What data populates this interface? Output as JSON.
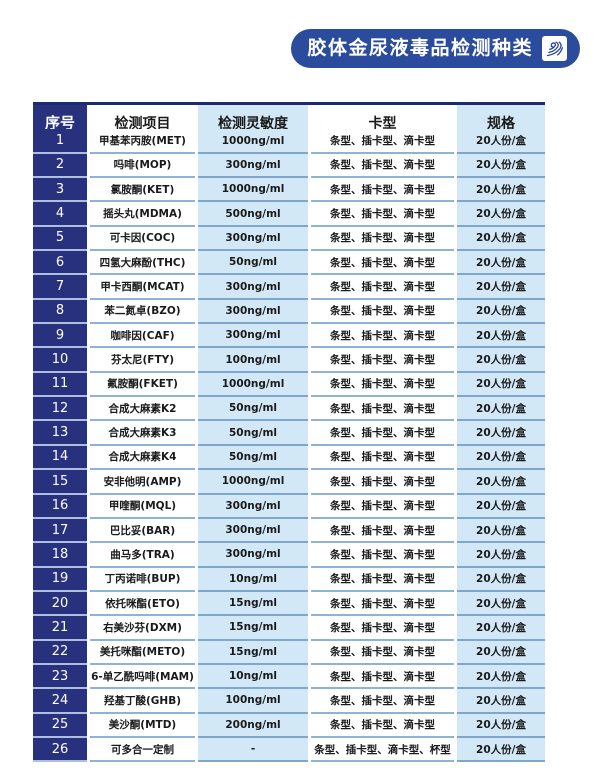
{
  "banner": {
    "title": "胶体金尿液毒品检测种类",
    "icon": "fingerprint-icon"
  },
  "colors": {
    "banner_blue": "#2b4b9d",
    "index_navy": "#27317e",
    "cell_blue": "#d3e8f7",
    "divider": "#8fb3d3",
    "top_border": "#1b2a75"
  },
  "table": {
    "columns": [
      "序号",
      "检测项目",
      "检测灵敏度",
      "卡型",
      "规格"
    ],
    "rows": [
      {
        "no": "1",
        "item": "甲基苯丙胺(MET)",
        "sensitivity": "1000ng/ml",
        "card": "条型、插卡型、滴卡型",
        "spec": "20人份/盒"
      },
      {
        "no": "2",
        "item": "吗啡(MOP)",
        "sensitivity": "300ng/ml",
        "card": "条型、插卡型、滴卡型",
        "spec": "20人份/盒"
      },
      {
        "no": "3",
        "item": "氯胺酮(KET)",
        "sensitivity": "1000ng/ml",
        "card": "条型、插卡型、滴卡型",
        "spec": "20人份/盒"
      },
      {
        "no": "4",
        "item": "摇头丸(MDMA)",
        "sensitivity": "500ng/ml",
        "card": "条型、插卡型、滴卡型",
        "spec": "20人份/盒"
      },
      {
        "no": "5",
        "item": "可卡因(COC)",
        "sensitivity": "300ng/ml",
        "card": "条型、插卡型、滴卡型",
        "spec": "20人份/盒"
      },
      {
        "no": "6",
        "item": "四氢大麻酚(THC)",
        "sensitivity": "50ng/ml",
        "card": "条型、插卡型、滴卡型",
        "spec": "20人份/盒"
      },
      {
        "no": "7",
        "item": "甲卡西酮(MCAT)",
        "sensitivity": "300ng/ml",
        "card": "条型、插卡型、滴卡型",
        "spec": "20人份/盒"
      },
      {
        "no": "8",
        "item": "苯二氮卓(BZO)",
        "sensitivity": "300ng/ml",
        "card": "条型、插卡型、滴卡型",
        "spec": "20人份/盒"
      },
      {
        "no": "9",
        "item": "咖啡因(CAF)",
        "sensitivity": "300ng/ml",
        "card": "条型、插卡型、滴卡型",
        "spec": "20人份/盒"
      },
      {
        "no": "10",
        "item": "芬太尼(FTY)",
        "sensitivity": "100ng/ml",
        "card": "条型、插卡型、滴卡型",
        "spec": "20人份/盒"
      },
      {
        "no": "11",
        "item": "氟胺酮(FKET)",
        "sensitivity": "1000ng/ml",
        "card": "条型、插卡型、滴卡型",
        "spec": "20人份/盒"
      },
      {
        "no": "12",
        "item": "合成大麻素K2",
        "sensitivity": "50ng/ml",
        "card": "条型、插卡型、滴卡型",
        "spec": "20人份/盒"
      },
      {
        "no": "13",
        "item": "合成大麻素K3",
        "sensitivity": "50ng/ml",
        "card": "条型、插卡型、滴卡型",
        "spec": "20人份/盒"
      },
      {
        "no": "14",
        "item": "合成大麻素K4",
        "sensitivity": "50ng/ml",
        "card": "条型、插卡型、滴卡型",
        "spec": "20人份/盒"
      },
      {
        "no": "15",
        "item": "安非他明(AMP)",
        "sensitivity": "1000ng/ml",
        "card": "条型、插卡型、滴卡型",
        "spec": "20人份/盒"
      },
      {
        "no": "16",
        "item": "甲喹酮(MQL)",
        "sensitivity": "300ng/ml",
        "card": "条型、插卡型、滴卡型",
        "spec": "20人份/盒"
      },
      {
        "no": "17",
        "item": "巴比妥(BAR)",
        "sensitivity": "300ng/ml",
        "card": "条型、插卡型、滴卡型",
        "spec": "20人份/盒"
      },
      {
        "no": "18",
        "item": "曲马多(TRA)",
        "sensitivity": "300ng/ml",
        "card": "条型、插卡型、滴卡型",
        "spec": "20人份/盒"
      },
      {
        "no": "19",
        "item": "丁丙诺啡(BUP)",
        "sensitivity": "10ng/ml",
        "card": "条型、插卡型、滴卡型",
        "spec": "20人份/盒"
      },
      {
        "no": "20",
        "item": "依托咪酯(ETO)",
        "sensitivity": "15ng/ml",
        "card": "条型、插卡型、滴卡型",
        "spec": "20人份/盒"
      },
      {
        "no": "21",
        "item": "右美沙芬(DXM)",
        "sensitivity": "15ng/ml",
        "card": "条型、插卡型、滴卡型",
        "spec": "20人份/盒"
      },
      {
        "no": "22",
        "item": "美托咪酯(METO)",
        "sensitivity": "15ng/ml",
        "card": "条型、插卡型、滴卡型",
        "spec": "20人份/盒"
      },
      {
        "no": "23",
        "item": "6-单乙酰吗啡(MAM)",
        "sensitivity": "10ng/ml",
        "card": "条型、插卡型、滴卡型",
        "spec": "20人份/盒"
      },
      {
        "no": "24",
        "item": "羟基丁酸(GHB)",
        "sensitivity": "100ng/ml",
        "card": "条型、插卡型、滴卡型",
        "spec": "20人份/盒"
      },
      {
        "no": "25",
        "item": "美沙酮(MTD)",
        "sensitivity": "200ng/ml",
        "card": "条型、插卡型、滴卡型",
        "spec": "20人份/盒"
      },
      {
        "no": "26",
        "item": "可多合一定制",
        "sensitivity": "-",
        "card": "条型、插卡型、滴卡型、杯型",
        "spec": "20人份/盒"
      }
    ]
  }
}
